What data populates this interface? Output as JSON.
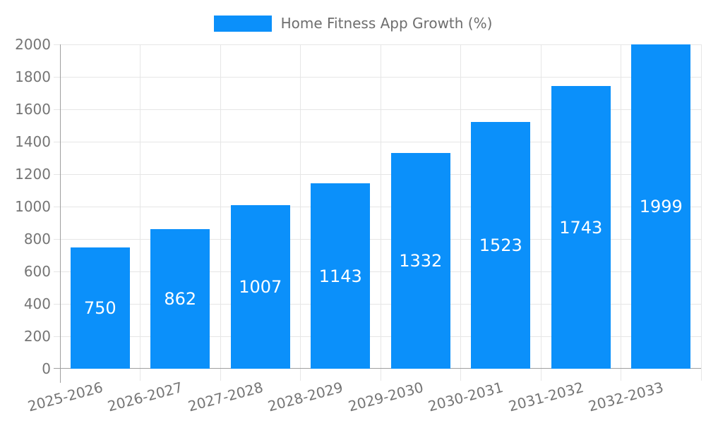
{
  "chart_data": {
    "type": "bar",
    "title": "Home Fitness App Growth (%)",
    "categories": [
      "2025-2026",
      "2026-2027",
      "2027-2028",
      "2028-2029",
      "2029-2030",
      "2030-2031",
      "2031-2032",
      "2032-2033"
    ],
    "values": [
      750,
      862,
      1007,
      1143,
      1332,
      1523,
      1743,
      1999
    ],
    "xlabel": "",
    "ylabel": "",
    "ylim": [
      0,
      2000
    ],
    "yticks": [
      0,
      200,
      400,
      600,
      800,
      1000,
      1200,
      1400,
      1600,
      1800,
      2000
    ],
    "grid": true,
    "legend_position": "top",
    "bar_color": "#0b90fa",
    "value_label_color": "#ffffff",
    "axis_text_color": "#757575",
    "legend_text_color": "#6e6e6e",
    "grid_color": "#e6e6e6",
    "axis_line_color": "#9e9e9e",
    "background_color": "#ffffff"
  },
  "legend": {
    "label": "Home Fitness App Growth (%)"
  }
}
